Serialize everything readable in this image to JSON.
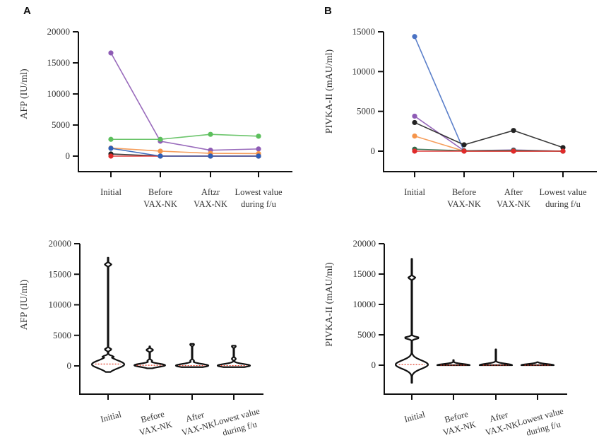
{
  "panels": {
    "A": {
      "letter": "A"
    },
    "B": {
      "letter": "B"
    }
  },
  "chart_data": [
    {
      "id": "A-line",
      "type": "line",
      "panel": "A",
      "title": "",
      "xlabel": "",
      "ylabel": "AFP (IU/ml)",
      "categories": [
        [
          "Initial"
        ],
        [
          "Before",
          "VAX-NK"
        ],
        [
          "Aftzr",
          "VAX-NK"
        ],
        [
          "Lowest value",
          "during f/u"
        ]
      ],
      "yticks": [
        0,
        5000,
        10000,
        15000,
        20000
      ],
      "ylim": [
        -1500,
        20000
      ],
      "grid": false,
      "legend": "none",
      "series": [
        {
          "name": "patient-purple",
          "color": "#8e5bb5",
          "values": [
            16600,
            2400,
            950,
            1150
          ]
        },
        {
          "name": "patient-green",
          "color": "#5cbf5c",
          "values": [
            2700,
            2700,
            3500,
            3200
          ]
        },
        {
          "name": "patient-orange",
          "color": "#f5944a",
          "values": [
            1300,
            800,
            450,
            400
          ]
        },
        {
          "name": "patient-black",
          "color": "#222222",
          "values": [
            350,
            0,
            0,
            0
          ]
        },
        {
          "name": "patient-red",
          "color": "#e02a2a",
          "values": [
            0,
            0,
            0,
            0
          ]
        },
        {
          "name": "patient-blue",
          "color": "#2c5fb8",
          "values": [
            1250,
            0,
            0,
            0
          ]
        }
      ]
    },
    {
      "id": "B-line",
      "type": "line",
      "panel": "B",
      "title": "",
      "xlabel": "",
      "ylabel": "PIVKA-II (mAU/ml)",
      "categories": [
        [
          "Initial"
        ],
        [
          "Before",
          "VAX-NK"
        ],
        [
          "After",
          "VAX-NK"
        ],
        [
          "Lowest value",
          "during f/u"
        ]
      ],
      "yticks": [
        0,
        5000,
        10000,
        15000
      ],
      "ylim": [
        -1500,
        15000
      ],
      "grid": false,
      "legend": "none",
      "series": [
        {
          "name": "patient-blue",
          "color": "#4a72c4",
          "values": [
            14400,
            0,
            0,
            0
          ]
        },
        {
          "name": "patient-purple",
          "color": "#8e5bb5",
          "values": [
            4400,
            50,
            150,
            0
          ]
        },
        {
          "name": "patient-black",
          "color": "#222222",
          "values": [
            3600,
            800,
            2600,
            450
          ]
        },
        {
          "name": "patient-orange",
          "color": "#f5944a",
          "values": [
            1900,
            0,
            0,
            0
          ]
        },
        {
          "name": "patient-green",
          "color": "#2e6b4a",
          "values": [
            250,
            50,
            100,
            0
          ]
        },
        {
          "name": "patient-red",
          "color": "#e02a2a",
          "values": [
            0,
            0,
            0,
            0
          ]
        }
      ]
    },
    {
      "id": "A-violin",
      "type": "violin",
      "panel": "A",
      "title": "",
      "xlabel": "",
      "ylabel": "AFP (IU/ml)",
      "categories": [
        [
          "Initial"
        ],
        [
          "Before",
          "VAX-NK"
        ],
        [
          "After",
          "VAX-NK"
        ],
        [
          "Lowest value",
          "during f/u"
        ]
      ],
      "yticks": [
        0,
        5000,
        10000,
        15000,
        20000
      ],
      "ylim": [
        -4500,
        20000
      ],
      "grid": false,
      "median_color": "#e0402a",
      "groups": [
        {
          "category": "Initial",
          "min": -1000,
          "max": 17700,
          "median": 300,
          "bulges": [
            {
              "at": 250,
              "width": 1.0
            },
            {
              "at": 1500,
              "width": 0.35
            },
            {
              "at": 2700,
              "width": 0.2
            },
            {
              "at": 16600,
              "width": 0.2
            }
          ]
        },
        {
          "category": "Before VAX-NK",
          "min": -400,
          "max": 3200,
          "median": 100,
          "bulges": [
            {
              "at": 100,
              "width": 0.95
            },
            {
              "at": 800,
              "width": 0.15
            },
            {
              "at": 2600,
              "width": 0.2
            }
          ]
        },
        {
          "category": "After VAX-NK",
          "min": -200,
          "max": 3600,
          "median": 50,
          "bulges": [
            {
              "at": 50,
              "width": 1.0
            },
            {
              "at": 800,
              "width": 0.12
            },
            {
              "at": 3500,
              "width": 0.12
            }
          ]
        },
        {
          "category": "Lowest value during f/u",
          "min": -200,
          "max": 3300,
          "median": 50,
          "bulges": [
            {
              "at": 50,
              "width": 1.0
            },
            {
              "at": 1150,
              "width": 0.12
            },
            {
              "at": 3200,
              "width": 0.12
            }
          ]
        }
      ]
    },
    {
      "id": "B-violin",
      "type": "violin",
      "panel": "B",
      "title": "",
      "xlabel": "",
      "ylabel": "PIVKA-II (mAU/ml)",
      "categories": [
        [
          "Initial"
        ],
        [
          "Before",
          "VAX-NK"
        ],
        [
          "After",
          "VAX-NK"
        ],
        [
          "Lowest value",
          "during f/u"
        ]
      ],
      "yticks": [
        0,
        5000,
        10000,
        15000,
        20000
      ],
      "ylim": [
        -4500,
        20000
      ],
      "grid": false,
      "median_color": "#e0402a",
      "groups": [
        {
          "category": "Initial",
          "min": -2900,
          "max": 17500,
          "median": 100,
          "bulges": [
            {
              "at": 100,
              "width": 1.0
            },
            {
              "at": 4500,
              "width": 0.45
            },
            {
              "at": 14400,
              "width": 0.22
            }
          ]
        },
        {
          "category": "Before VAX-NK",
          "min": 0,
          "max": 850,
          "median": 0,
          "bulges": [
            {
              "at": 0,
              "width": 1.0
            }
          ]
        },
        {
          "category": "After VAX-NK",
          "min": 0,
          "max": 2600,
          "median": 0,
          "bulges": [
            {
              "at": 0,
              "width": 1.0
            }
          ]
        },
        {
          "category": "Lowest value during f/u",
          "min": 0,
          "max": 500,
          "median": 0,
          "bulges": [
            {
              "at": 0,
              "width": 1.0
            }
          ]
        }
      ]
    }
  ]
}
